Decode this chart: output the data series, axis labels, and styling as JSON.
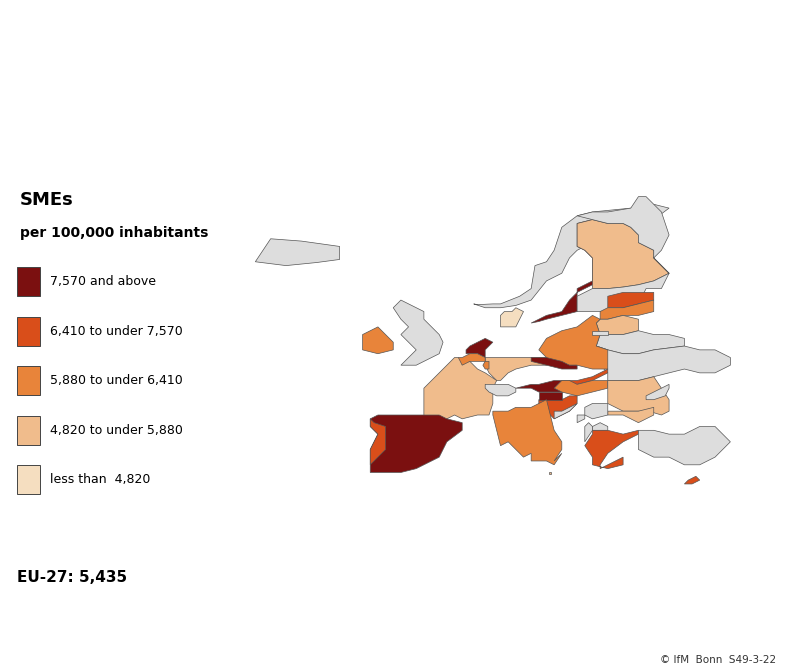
{
  "legend_title_line1": "SMEs",
  "legend_title_line2": "per 100,000 inhabitants",
  "legend_labels": [
    "7,570 and above",
    "6,410 to under 7,570",
    "5,880 to under 6,410",
    "4,820 to under 5,880",
    "less than  4,820"
  ],
  "legend_colors": [
    "#7B1010",
    "#D94E1A",
    "#E8843A",
    "#F0BC8C",
    "#F5DEC0"
  ],
  "eu27_note": "EU-27: 5,435",
  "copyright": "© IfM  Bonn  S49-3-22",
  "border_color_orange": "#E87722",
  "non_eu_color": "#DDDDDD",
  "outline_color": "#555555",
  "country_colors": {
    "Sweden": "#7B1010",
    "Finland": "#F0BC8C",
    "Estonia": "#D94E1A",
    "Latvia": "#E8843A",
    "Lithuania": "#F0BC8C",
    "Netherlands": "#7B1010",
    "Czechia": "#7B1010",
    "Slovakia": "#D94E1A",
    "Austria": "#7B1010",
    "Slovenia": "#7B1010",
    "Croatia": "#D94E1A",
    "Greece": "#D94E1A",
    "Cyprus": "#D94E1A",
    "Portugal": "#D94E1A",
    "Spain": "#7B1010",
    "Italy": "#E8843A",
    "France": "#F0BC8C",
    "Belgium": "#E8843A",
    "Luxembourg": "#E8843A",
    "Germany": "#F0BC8C",
    "Poland": "#E8843A",
    "Hungary": "#E8843A",
    "Romania": "#F0BC8C",
    "Bulgaria": "#F0BC8C",
    "Denmark": "#F5DEC0",
    "Ireland": "#E8843A",
    "Malta": "#F0BC8C"
  }
}
